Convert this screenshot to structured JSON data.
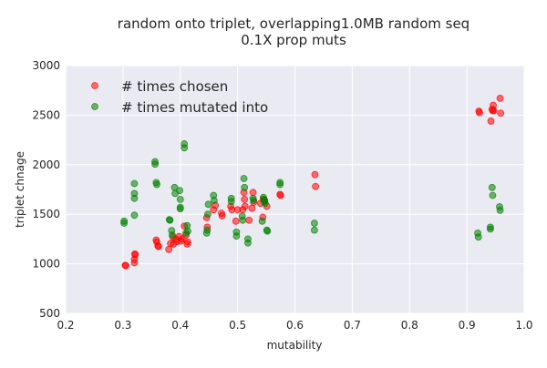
{
  "chart_data": {
    "type": "scatter",
    "title_lines": [
      "random onto triplet,  overlapping1.0MB random seq",
      "0.1X prop muts"
    ],
    "xlabel": "mutability",
    "ylabel": "triplet chnage",
    "xlim": [
      0.2,
      1.0
    ],
    "ylim": [
      500,
      3000
    ],
    "xticks": [
      0.2,
      0.3,
      0.4,
      0.5,
      0.6,
      0.7,
      0.8,
      0.9,
      1.0
    ],
    "xtick_labels": [
      "0.2",
      "0.3",
      "0.4",
      "0.5",
      "0.6",
      "0.7",
      "0.8",
      "0.9",
      "1.0"
    ],
    "yticks": [
      500,
      1000,
      1500,
      2000,
      2500,
      3000
    ],
    "ytick_labels": [
      "500",
      "1000",
      "1500",
      "2000",
      "2500",
      "3000"
    ],
    "grid": true,
    "legend_position": "top-left",
    "background": "#eaeaf2",
    "series": [
      {
        "name": "# times chosen",
        "color": "#ff0000",
        "points": [
          [
            0.304,
            985
          ],
          [
            0.305,
            980
          ],
          [
            0.32,
            1010
          ],
          [
            0.32,
            1045
          ],
          [
            0.321,
            1100
          ],
          [
            0.321,
            1090
          ],
          [
            0.358,
            1240
          ],
          [
            0.359,
            1220
          ],
          [
            0.361,
            1180
          ],
          [
            0.362,
            1175
          ],
          [
            0.38,
            1145
          ],
          [
            0.383,
            1205
          ],
          [
            0.387,
            1270
          ],
          [
            0.388,
            1200
          ],
          [
            0.392,
            1250
          ],
          [
            0.394,
            1225
          ],
          [
            0.398,
            1275
          ],
          [
            0.401,
            1230
          ],
          [
            0.403,
            1250
          ],
          [
            0.407,
            1380
          ],
          [
            0.41,
            1290
          ],
          [
            0.413,
            1220
          ],
          [
            0.412,
            1200
          ],
          [
            0.446,
            1465
          ],
          [
            0.447,
            1370
          ],
          [
            0.458,
            1545
          ],
          [
            0.461,
            1590
          ],
          [
            0.472,
            1510
          ],
          [
            0.473,
            1485
          ],
          [
            0.488,
            1580
          ],
          [
            0.49,
            1545
          ],
          [
            0.497,
            1430
          ],
          [
            0.5,
            1545
          ],
          [
            0.509,
            1545
          ],
          [
            0.511,
            1720
          ],
          [
            0.512,
            1650
          ],
          [
            0.513,
            1580
          ],
          [
            0.52,
            1440
          ],
          [
            0.525,
            1560
          ],
          [
            0.527,
            1720
          ],
          [
            0.528,
            1620
          ],
          [
            0.54,
            1610
          ],
          [
            0.544,
            1470
          ],
          [
            0.545,
            1650
          ],
          [
            0.547,
            1640
          ],
          [
            0.551,
            1580
          ],
          [
            0.574,
            1700
          ],
          [
            0.575,
            1690
          ],
          [
            0.635,
            1900
          ],
          [
            0.636,
            1780
          ],
          [
            0.921,
            2540
          ],
          [
            0.922,
            2525
          ],
          [
            0.942,
            2440
          ],
          [
            0.944,
            2560
          ],
          [
            0.945,
            2545
          ],
          [
            0.946,
            2600
          ],
          [
            0.947,
            2545
          ],
          [
            0.958,
            2670
          ],
          [
            0.959,
            2520
          ]
        ]
      },
      {
        "name": "# times mutated into",
        "color": "#008000",
        "points": [
          [
            0.302,
            1430
          ],
          [
            0.302,
            1410
          ],
          [
            0.32,
            1810
          ],
          [
            0.32,
            1710
          ],
          [
            0.32,
            1660
          ],
          [
            0.32,
            1490
          ],
          [
            0.356,
            2030
          ],
          [
            0.356,
            2005
          ],
          [
            0.358,
            1820
          ],
          [
            0.359,
            1800
          ],
          [
            0.381,
            1445
          ],
          [
            0.382,
            1440
          ],
          [
            0.385,
            1335
          ],
          [
            0.386,
            1290
          ],
          [
            0.39,
            1770
          ],
          [
            0.391,
            1710
          ],
          [
            0.399,
            1740
          ],
          [
            0.4,
            1650
          ],
          [
            0.4,
            1570
          ],
          [
            0.4,
            1555
          ],
          [
            0.407,
            2210
          ],
          [
            0.407,
            2170
          ],
          [
            0.41,
            1310
          ],
          [
            0.412,
            1385
          ],
          [
            0.413,
            1330
          ],
          [
            0.446,
            1310
          ],
          [
            0.447,
            1340
          ],
          [
            0.448,
            1500
          ],
          [
            0.449,
            1600
          ],
          [
            0.458,
            1690
          ],
          [
            0.459,
            1640
          ],
          [
            0.489,
            1660
          ],
          [
            0.489,
            1630
          ],
          [
            0.498,
            1320
          ],
          [
            0.498,
            1280
          ],
          [
            0.508,
            1480
          ],
          [
            0.509,
            1440
          ],
          [
            0.511,
            1860
          ],
          [
            0.512,
            1770
          ],
          [
            0.518,
            1250
          ],
          [
            0.518,
            1210
          ],
          [
            0.527,
            1660
          ],
          [
            0.528,
            1640
          ],
          [
            0.543,
            1430
          ],
          [
            0.545,
            1670
          ],
          [
            0.546,
            1650
          ],
          [
            0.547,
            1630
          ],
          [
            0.548,
            1610
          ],
          [
            0.551,
            1340
          ],
          [
            0.552,
            1330
          ],
          [
            0.574,
            1820
          ],
          [
            0.574,
            1800
          ],
          [
            0.634,
            1410
          ],
          [
            0.634,
            1340
          ],
          [
            0.919,
            1310
          ],
          [
            0.92,
            1270
          ],
          [
            0.941,
            1370
          ],
          [
            0.941,
            1350
          ],
          [
            0.944,
            1770
          ],
          [
            0.945,
            1690
          ],
          [
            0.957,
            1575
          ],
          [
            0.958,
            1540
          ]
        ]
      }
    ]
  }
}
